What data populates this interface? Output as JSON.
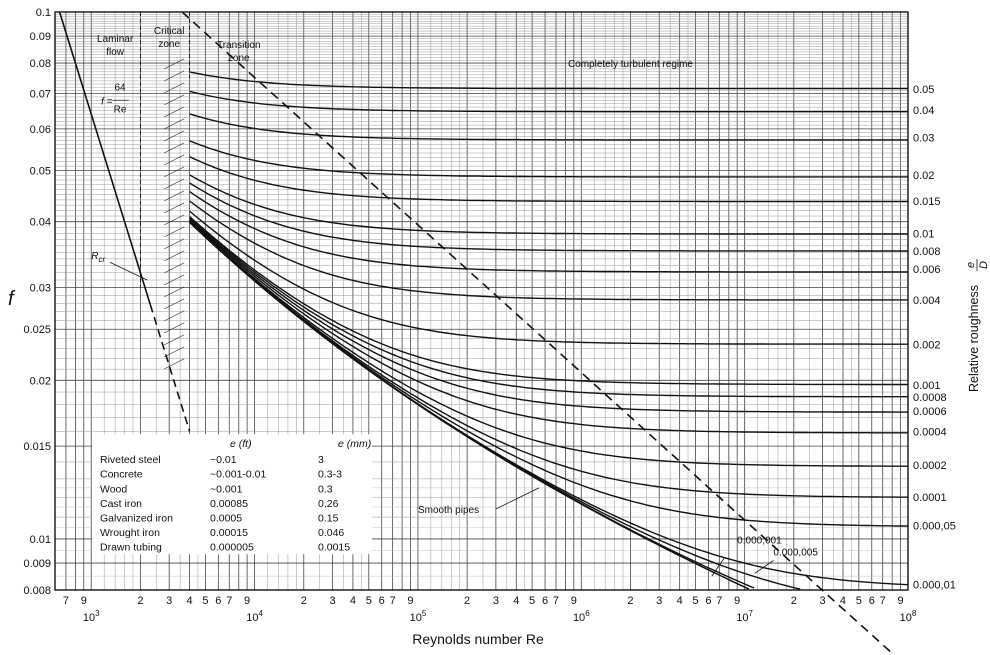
{
  "chart_data": {
    "type": "line",
    "title": "",
    "xlabel": "Reynolds number Re",
    "ylabel": "f",
    "right_axis_label": "Relative roughness",
    "right_axis_fraction": {
      "numerator": "e",
      "denominator": "D"
    },
    "x_scale": "log",
    "y_scale": "log",
    "xlim": [
      600,
      100000000
    ],
    "ylim": [
      0.008,
      0.1
    ],
    "grid": true,
    "x_decades": [
      {
        "value": 1000,
        "base": "10",
        "exp": "3"
      },
      {
        "value": 10000,
        "base": "10",
        "exp": "4"
      },
      {
        "value": 100000,
        "base": "10",
        "exp": "5"
      },
      {
        "value": 1000000,
        "base": "10",
        "exp": "6"
      },
      {
        "value": 10000000,
        "base": "10",
        "exp": "7"
      },
      {
        "value": 100000000,
        "base": "10",
        "exp": "8"
      }
    ],
    "x_minor_ticks": [
      {
        "value": 700,
        "label": "7"
      },
      {
        "value": 900,
        "label": "9"
      },
      {
        "value": 2000,
        "label": "2"
      },
      {
        "value": 3000,
        "label": "3"
      },
      {
        "value": 4000,
        "label": "4"
      },
      {
        "value": 5000,
        "label": "5"
      },
      {
        "value": 6000,
        "label": "6"
      },
      {
        "value": 7000,
        "label": "7"
      },
      {
        "value": 9000,
        "label": "9"
      },
      {
        "value": 20000,
        "label": "2"
      },
      {
        "value": 30000,
        "label": "3"
      },
      {
        "value": 40000,
        "label": "4"
      },
      {
        "value": 50000,
        "label": "5"
      },
      {
        "value": 60000,
        "label": "6"
      },
      {
        "value": 70000,
        "label": "7"
      },
      {
        "value": 90000,
        "label": "9"
      },
      {
        "value": 200000,
        "label": "2"
      },
      {
        "value": 300000,
        "label": "3"
      },
      {
        "value": 400000,
        "label": "4"
      },
      {
        "value": 500000,
        "label": "5"
      },
      {
        "value": 600000,
        "label": "6"
      },
      {
        "value": 700000,
        "label": "7"
      },
      {
        "value": 900000,
        "label": "9"
      },
      {
        "value": 2000000,
        "label": "2"
      },
      {
        "value": 3000000,
        "label": "3"
      },
      {
        "value": 4000000,
        "label": "4"
      },
      {
        "value": 5000000,
        "label": "5"
      },
      {
        "value": 6000000,
        "label": "6"
      },
      {
        "value": 7000000,
        "label": "7"
      },
      {
        "value": 9000000,
        "label": "9"
      },
      {
        "value": 20000000,
        "label": "2"
      },
      {
        "value": 30000000,
        "label": "3"
      },
      {
        "value": 40000000,
        "label": "4"
      },
      {
        "value": 50000000,
        "label": "5"
      },
      {
        "value": 60000000,
        "label": "6"
      },
      {
        "value": 70000000,
        "label": "7"
      },
      {
        "value": 90000000,
        "label": "9"
      }
    ],
    "y_ticks": [
      {
        "value": 0.1,
        "label": "0.1"
      },
      {
        "value": 0.09,
        "label": "0.09"
      },
      {
        "value": 0.08,
        "label": "0.08"
      },
      {
        "value": 0.07,
        "label": "0.07"
      },
      {
        "value": 0.06,
        "label": "0.06"
      },
      {
        "value": 0.05,
        "label": "0.05"
      },
      {
        "value": 0.04,
        "label": "0.04"
      },
      {
        "value": 0.03,
        "label": "0.03"
      },
      {
        "value": 0.025,
        "label": "0.025"
      },
      {
        "value": 0.02,
        "label": "0.02"
      },
      {
        "value": 0.015,
        "label": "0.015"
      },
      {
        "value": 0.01,
        "label": "0.01"
      },
      {
        "value": 0.009,
        "label": "0.009"
      },
      {
        "value": 0.008,
        "label": "0.008"
      }
    ],
    "series": [
      {
        "name": "0.05",
        "value": 0.05,
        "label": "0.05",
        "label_f": 0.0715
      },
      {
        "name": "0.04",
        "value": 0.04,
        "label": "0.04",
        "label_f": 0.0652
      },
      {
        "name": "0.03",
        "value": 0.03,
        "label": "0.03",
        "label_f": 0.0578
      },
      {
        "name": "0.02",
        "value": 0.02,
        "label": "0.02",
        "label_f": 0.049
      },
      {
        "name": "0.015",
        "value": 0.015,
        "label": "0.015",
        "label_f": 0.0438
      },
      {
        "name": "0.01",
        "value": 0.01,
        "label": "0.01",
        "label_f": 0.038
      },
      {
        "name": "0.008",
        "value": 0.008,
        "label": "0.008",
        "label_f": 0.0352
      },
      {
        "name": "0.006",
        "value": 0.006,
        "label": "0.006",
        "label_f": 0.0325
      },
      {
        "name": "0.004",
        "value": 0.004,
        "label": "0.004",
        "label_f": 0.0284
      },
      {
        "name": "0.002",
        "value": 0.002,
        "label": "0.002",
        "label_f": 0.0234
      },
      {
        "name": "0.001",
        "value": 0.001,
        "label": "0.001",
        "label_f": 0.0196
      },
      {
        "name": "0.0008",
        "value": 0.0008,
        "label": "0.0008",
        "label_f": 0.0186
      },
      {
        "name": "0.0006",
        "value": 0.0006,
        "label": "0.0006",
        "label_f": 0.0175
      },
      {
        "name": "0.0004",
        "value": 0.0004,
        "label": "0.0004",
        "label_f": 0.016
      },
      {
        "name": "0.0002",
        "value": 0.0002,
        "label": "0.0002",
        "label_f": 0.0138
      },
      {
        "name": "0.0001",
        "value": 0.0001,
        "label": "0.0001",
        "label_f": 0.012
      },
      {
        "name": "0.000,05",
        "value": 5e-05,
        "label": "0.000,05",
        "label_f": 0.0106
      },
      {
        "name": "0.000,01",
        "value": 1e-05,
        "label": "0.000,01",
        "label_f": 0.0082
      },
      {
        "name": "0.000,005",
        "value": 5e-06,
        "label": "0.000,005"
      },
      {
        "name": "0.000,001",
        "value": 1e-06,
        "label": "0.000,001"
      },
      {
        "name": "Smooth pipes",
        "value": 0,
        "label": "Smooth pipes"
      }
    ],
    "laminar_line": {
      "formula": "f = 64/Re",
      "re_start": 640,
      "re_end": 2300,
      "dashed_to": 4000
    },
    "turbulent_boundary": {
      "style": "dashed",
      "points_re": [
        3600,
        10000000000
      ]
    },
    "zones": {
      "laminar": "Laminar flow",
      "critical": "Critical zone",
      "transition": "Transition zone",
      "turbulent": "Completely turbulent regime"
    },
    "annotations": {
      "laminar_formula": {
        "lhs": "f =",
        "num": "64",
        "den": "Re"
      },
      "rcr": "R",
      "rcr_sub": "cr",
      "smooth_pipes": "Smooth pipes",
      "ann_000001": "0.000,001",
      "ann_000005": "0.000,005"
    },
    "roughness_table": {
      "headers": [
        "",
        "e (ft)",
        "e (mm)"
      ],
      "rows": [
        [
          "Riveted steel",
          "~0.01",
          "3"
        ],
        [
          "Concrete",
          "~0.001-0.01",
          "0.3-3"
        ],
        [
          "Wood",
          "~0.001",
          "0.3"
        ],
        [
          "Cast iron",
          "0.00085",
          "0.26"
        ],
        [
          "Galvanized iron",
          "0.0005",
          "0.15"
        ],
        [
          "Wrought iron",
          "0.00015",
          "0.046"
        ],
        [
          "Drawn tubing",
          "0.000005",
          "0.0015"
        ]
      ]
    }
  }
}
